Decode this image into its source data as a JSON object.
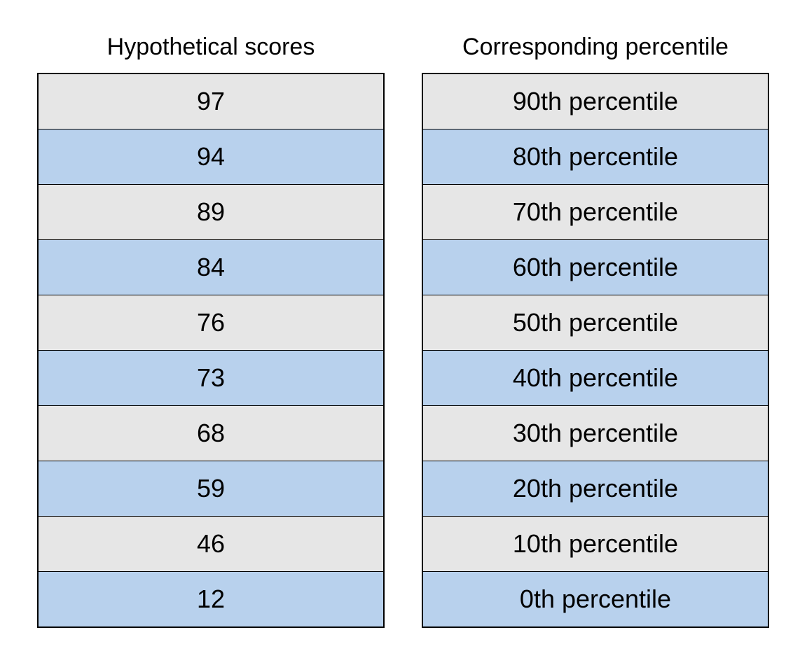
{
  "columns": [
    {
      "title": "Hypothetical scores",
      "rows": [
        "97",
        "94",
        "89",
        "84",
        "76",
        "73",
        "68",
        "59",
        "46",
        "12"
      ]
    },
    {
      "title": "Corresponding percentile",
      "rows": [
        "90th percentile",
        "80th percentile",
        "70th percentile",
        "60th percentile",
        "50th percentile",
        "40th percentile",
        "30th percentile",
        "20th percentile",
        "10th percentile",
        "0th percentile"
      ]
    }
  ],
  "colors": {
    "row_odd": "#e6e6e6",
    "row_even": "#b8d1ed",
    "border": "#000000"
  }
}
